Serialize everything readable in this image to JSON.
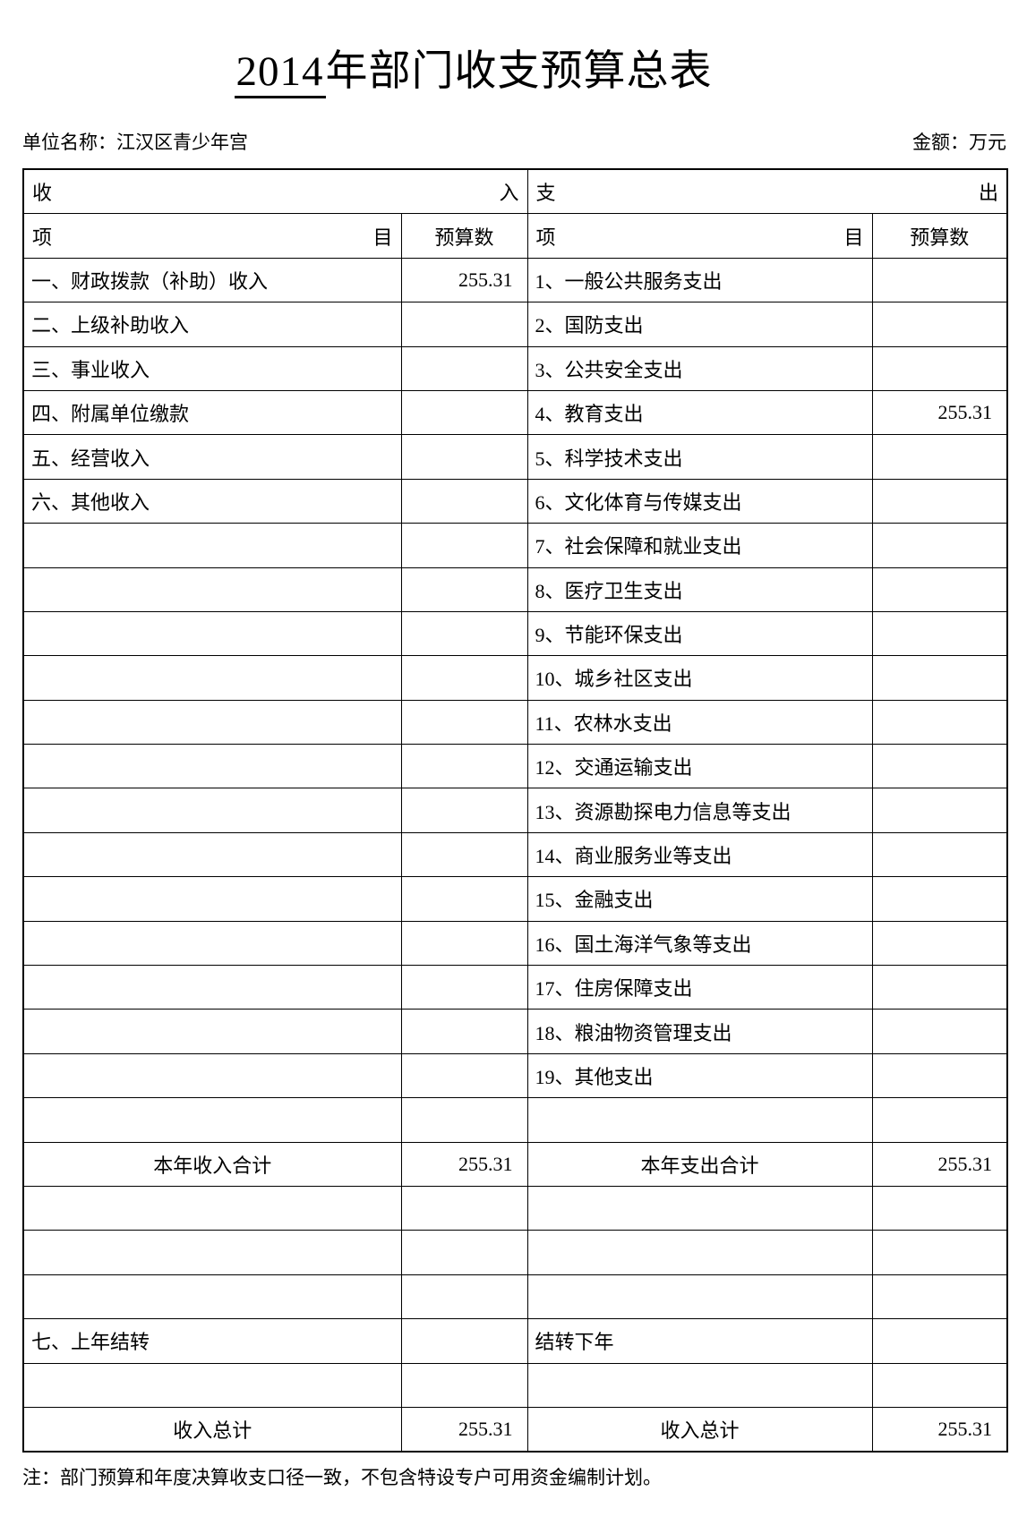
{
  "title": {
    "year": "2014",
    "rest": "年部门收支预算总表"
  },
  "meta": {
    "unit": "单位名称：江汉区青少年宫",
    "amount": "金额：万元"
  },
  "colors": {
    "ink": "#000000",
    "paper": "#ffffff"
  },
  "table": {
    "band_income": {
      "first": "收",
      "last": "入"
    },
    "band_expense": {
      "first": "支",
      "last": "出"
    },
    "head_item": {
      "first": "项",
      "last": "目"
    },
    "head_budget": "预算数",
    "rows": [
      {
        "income": "一、财政拨款（补助）收入",
        "income_val": "255.31",
        "expense": "1、一般公共服务支出",
        "expense_val": ""
      },
      {
        "income": "二、上级补助收入",
        "income_val": "",
        "expense": "2、国防支出",
        "expense_val": ""
      },
      {
        "income": "三、事业收入",
        "income_val": "",
        "expense": "3、公共安全支出",
        "expense_val": ""
      },
      {
        "income": "四、附属单位缴款",
        "income_val": "",
        "expense": "4、教育支出",
        "expense_val": "255.31"
      },
      {
        "income": "五、经营收入",
        "income_val": "",
        "expense": "5、科学技术支出",
        "expense_val": ""
      },
      {
        "income": "六、其他收入",
        "income_val": "",
        "expense": "6、文化体育与传媒支出",
        "expense_val": ""
      },
      {
        "income": "",
        "income_val": "",
        "expense": "7、社会保障和就业支出",
        "expense_val": ""
      },
      {
        "income": "",
        "income_val": "",
        "expense": "8、医疗卫生支出",
        "expense_val": ""
      },
      {
        "income": "",
        "income_val": "",
        "expense": "9、节能环保支出",
        "expense_val": ""
      },
      {
        "income": "",
        "income_val": "",
        "expense": "10、城乡社区支出",
        "expense_val": ""
      },
      {
        "income": "",
        "income_val": "",
        "expense": "11、农林水支出",
        "expense_val": ""
      },
      {
        "income": "",
        "income_val": "",
        "expense": "12、交通运输支出",
        "expense_val": ""
      },
      {
        "income": "",
        "income_val": "",
        "expense": "13、资源勘探电力信息等支出",
        "expense_val": ""
      },
      {
        "income": "",
        "income_val": "",
        "expense": "14、商业服务业等支出",
        "expense_val": ""
      },
      {
        "income": "",
        "income_val": "",
        "expense": "15、金融支出",
        "expense_val": ""
      },
      {
        "income": "",
        "income_val": "",
        "expense": "16、国土海洋气象等支出",
        "expense_val": ""
      },
      {
        "income": "",
        "income_val": "",
        "expense": "17、住房保障支出",
        "expense_val": ""
      },
      {
        "income": "",
        "income_val": "",
        "expense": "18、粮油物资管理支出",
        "expense_val": ""
      },
      {
        "income": "",
        "income_val": "",
        "expense": "19、其他支出",
        "expense_val": ""
      },
      {
        "income": "",
        "income_val": "",
        "expense": "",
        "expense_val": ""
      },
      {
        "income": "本年收入合计",
        "income_val": "255.31",
        "expense": "本年支出合计",
        "expense_val": "255.31",
        "total": true
      },
      {
        "income": "",
        "income_val": "",
        "expense": "",
        "expense_val": ""
      },
      {
        "income": "",
        "income_val": "",
        "expense": "",
        "expense_val": ""
      },
      {
        "income": "",
        "income_val": "",
        "expense": "",
        "expense_val": ""
      },
      {
        "income": "七、上年结转",
        "income_val": "",
        "expense": "结转下年",
        "expense_val": ""
      },
      {
        "income": "",
        "income_val": "",
        "expense": "",
        "expense_val": ""
      },
      {
        "income": "收入总计",
        "income_val": "255.31",
        "expense": "收入总计",
        "expense_val": "255.31",
        "total": true
      }
    ]
  },
  "note": "注：部门预算和年度决算收支口径一致，不包含特设专户可用资金编制计划。"
}
